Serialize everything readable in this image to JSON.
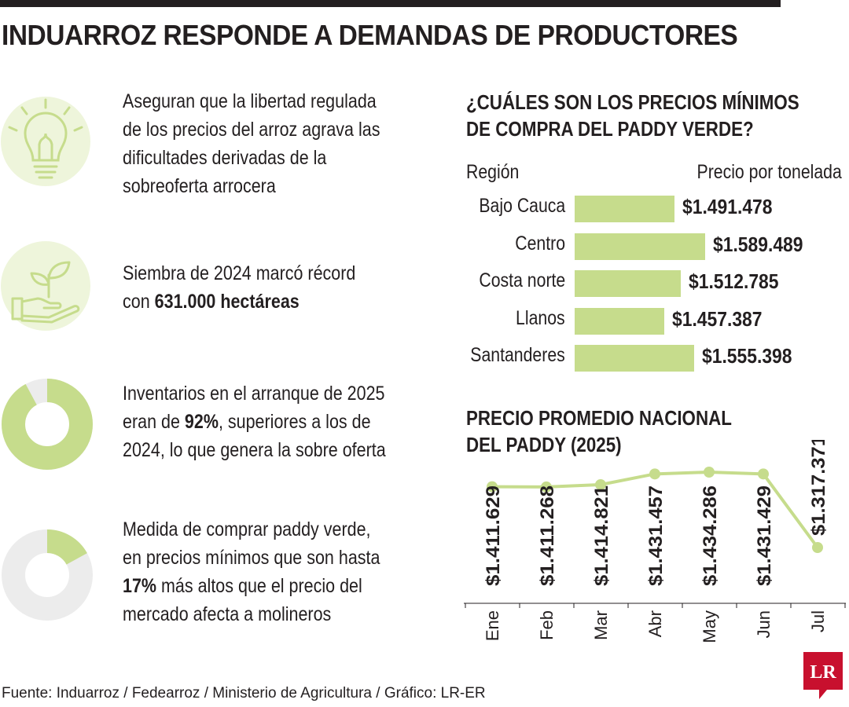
{
  "title": "INDUARROZ RESPONDE A DEMANDAS DE PRODUCTORES",
  "colors": {
    "accent": "#c6dc8c",
    "icon_bg": "#eef5db",
    "ring_bg": "#ececec",
    "text": "#231f20",
    "logo_red": "#c8102e"
  },
  "info_items": [
    {
      "icon": "lightbulb-icon",
      "text": "Aseguran que la libertad regulada de los precios del arroz agrava las dificultades derivadas de la sobreoferta arrocera"
    },
    {
      "icon": "plant-in-hand-icon",
      "text_pre": "Siembra de 2024 marcó récord con ",
      "text_bold": "631.000 hectáreas",
      "text_post": ""
    },
    {
      "icon": "donut-92-icon",
      "percent": 92,
      "text_pre": "Inventarios en el arranque de 2025 eran de ",
      "text_bold": "92%",
      "text_post": ", superiores a los de 2024, lo que genera la sobre oferta"
    },
    {
      "icon": "donut-17-icon",
      "percent": 17,
      "text_pre": "Medida de comprar paddy verde, en precios mínimos que son hasta ",
      "text_bold": "17%",
      "text_post": " más altos que el precio del mercado afecta a molineros"
    }
  ],
  "bar_section": {
    "title_line1": "¿CUÁLES SON LOS PRECIOS MÍNIMOS",
    "title_line2": "DE COMPRA DEL PADDY VERDE?",
    "col_region": "Región",
    "col_price": "Precio por tonelada"
  },
  "line_section": {
    "title_line1": "PRECIO PROMEDIO NACIONAL",
    "title_line2": "DEL PADDY (2025)"
  },
  "chart_data": [
    {
      "type": "bar",
      "title": "¿CUÁLES SON LOS PRECIOS MÍNIMOS DE COMPRA DEL PADDY VERDE?",
      "xlabel": "Región",
      "ylabel": "Precio por tonelada",
      "categories": [
        "Bajo Cauca",
        "Centro",
        "Costa norte",
        "Llanos",
        "Santanderes"
      ],
      "values": [
        1491478,
        1589489,
        1512785,
        1457387,
        1555398
      ],
      "value_labels": [
        "$1.491.478",
        "$1.589.489",
        "$1.512.785",
        "$1.457.387",
        "$1.555.398"
      ],
      "orientation": "horizontal",
      "grid": false
    },
    {
      "type": "line",
      "title": "PRECIO PROMEDIO NACIONAL DEL PADDY (2025)",
      "categories": [
        "Ene",
        "Feb",
        "Mar",
        "Abr",
        "May",
        "Jun",
        "Jul"
      ],
      "values": [
        1411629,
        1411268,
        1414821,
        1431457,
        1434286,
        1431429,
        1317371
      ],
      "value_labels": [
        "$1.411.629",
        "$1.411.268",
        "$1.414.821",
        "$1.431.457",
        "$1.434.286",
        "$1.431.429",
        "$1.317.371"
      ],
      "grid": false
    }
  ],
  "source": "Fuente: Induarroz / Fedearroz / Ministerio de Agricultura / Gráfico: LR-ER",
  "logo_text": "LR"
}
